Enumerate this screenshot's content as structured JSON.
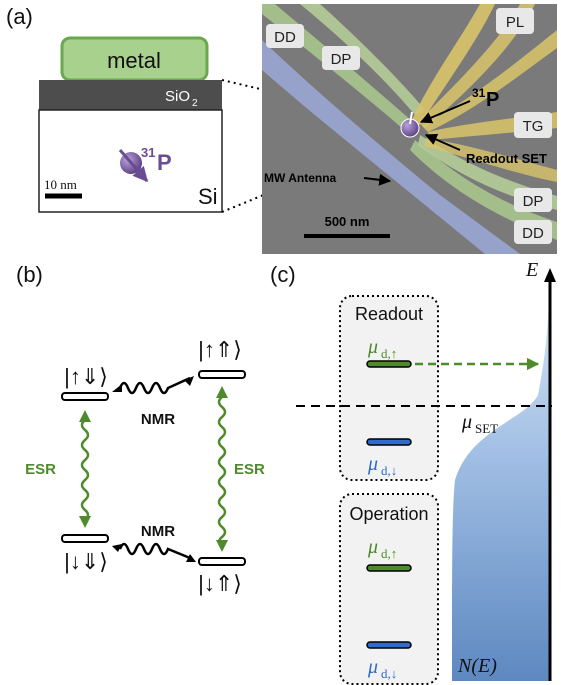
{
  "panels": {
    "a": "(a)",
    "b": "(b)",
    "c": "(c)"
  },
  "panel_a": {
    "metal": "metal",
    "oxide": "SiO",
    "oxide_sub": "2",
    "substrate": "Si",
    "scalebar_left": "10 nm",
    "dopant_sup": "31",
    "dopant": "P",
    "sem_labels": {
      "dd_top": "DD",
      "dp_top": "DP",
      "pl": "PL",
      "tg": "TG",
      "dp_bottom": "DP",
      "dd_bottom": "DD"
    },
    "arrow_p_sup": "31",
    "arrow_p": "P",
    "readout_set": "Readout SET",
    "mw_antenna": "MW Antenna",
    "scalebar_right": "500 nm"
  },
  "panel_b": {
    "state_up_down": "|↑⇓⟩",
    "state_up_up": "|↑⇑⟩",
    "state_down_down": "|↓⇓⟩",
    "state_down_up": "|↓⇑⟩",
    "nmr_top": "NMR",
    "nmr_bottom": "NMR",
    "esr_left": "ESR",
    "esr_right": "ESR"
  },
  "panel_c": {
    "readout": "Readout",
    "operation": "Operation",
    "mu_symbol": "μ",
    "sub_up": "d,↑",
    "sub_down": "d,↓",
    "mu_set_sub": "SET",
    "axis_e": "E",
    "dos": "N(E)"
  },
  "colors": {
    "green": "#4f8a2c",
    "blue": "#2f6cc9",
    "purple": "#6a4c93",
    "metal_fill": "#a9d18e",
    "dos_top": "#cfe0f3",
    "dos_bottom": "#6b95c8"
  }
}
